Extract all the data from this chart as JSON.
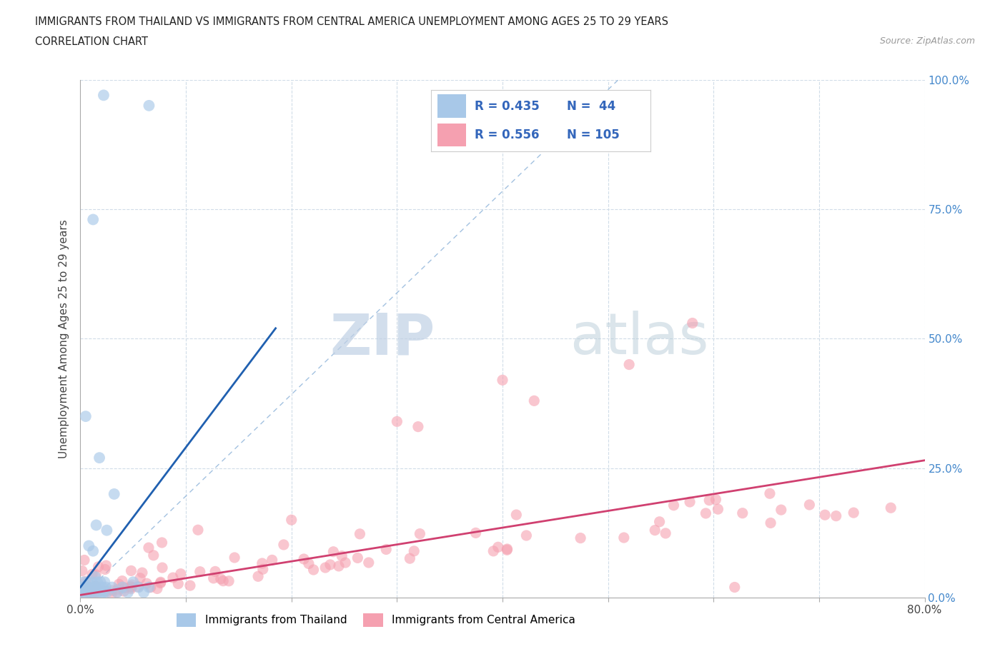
{
  "title_line1": "IMMIGRANTS FROM THAILAND VS IMMIGRANTS FROM CENTRAL AMERICA UNEMPLOYMENT AMONG AGES 25 TO 29 YEARS",
  "title_line2": "CORRELATION CHART",
  "source_text": "Source: ZipAtlas.com",
  "ylabel": "Unemployment Among Ages 25 to 29 years",
  "xlim": [
    0.0,
    0.8
  ],
  "ylim": [
    0.0,
    1.0
  ],
  "legend_R1": "0.435",
  "legend_N1": "44",
  "legend_R2": "0.556",
  "legend_N2": "105",
  "color_thailand": "#a8c8e8",
  "color_central_america": "#f5a0b0",
  "color_trend_thailand": "#2060b0",
  "color_trend_central_america": "#d04070",
  "color_ref_line": "#99bbdd",
  "watermark_zip": "ZIP",
  "watermark_atlas": "atlas",
  "background_color": "#ffffff",
  "grid_color": "#d0dce8",
  "right_tick_color": "#4488cc"
}
